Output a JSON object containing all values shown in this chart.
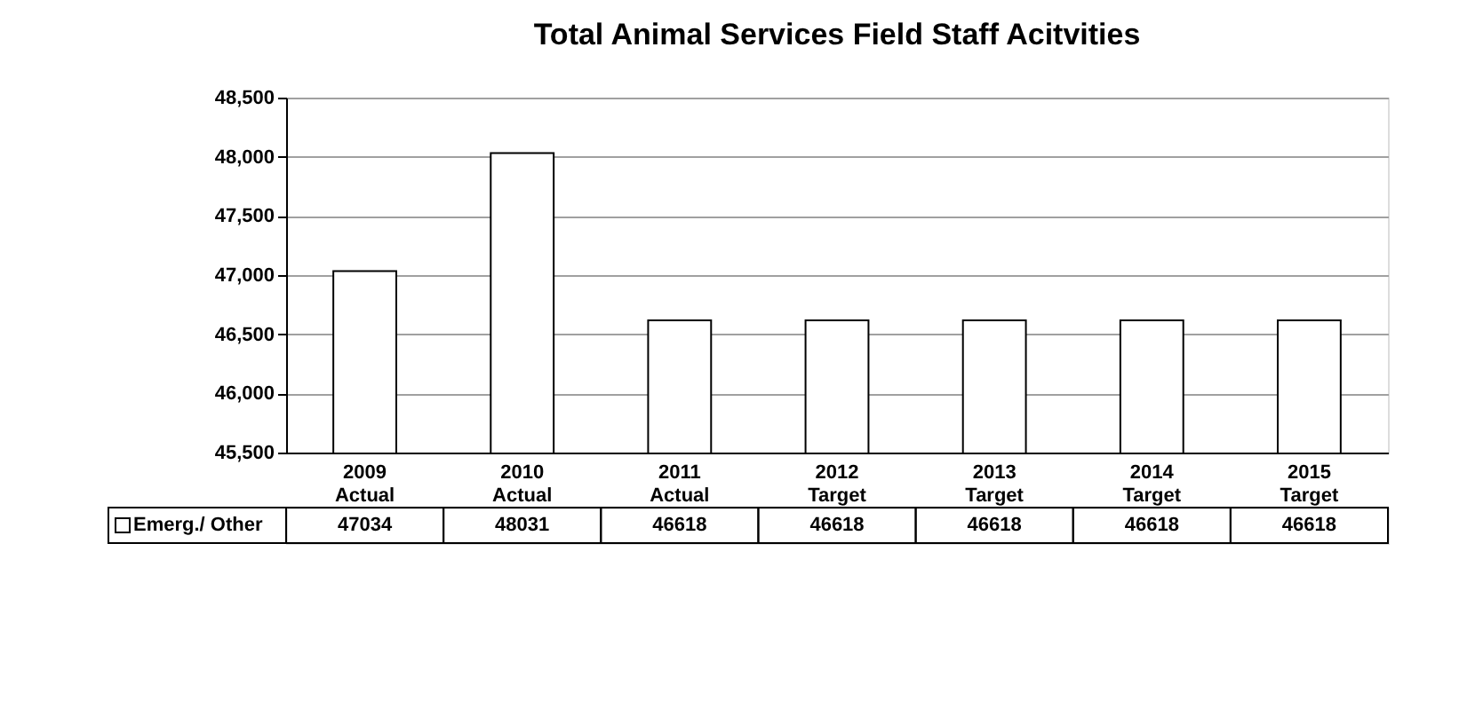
{
  "chart_data": {
    "type": "bar",
    "title": "Total Animal Services Field Staff Acitvities",
    "categories": [
      "2009 Actual",
      "2010 Actual",
      "2011 Actual",
      "2012 Target",
      "2013 Target",
      "2014 Target",
      "2015 Target"
    ],
    "series": [
      {
        "name": "Emerg./ Other",
        "color": "#ffffff",
        "values": [
          47034,
          48031,
          46618,
          46618,
          46618,
          46618,
          46618
        ]
      }
    ],
    "ylim": [
      45500,
      48500
    ],
    "yticks": [
      {
        "value": 45500,
        "label": "45,500"
      },
      {
        "value": 46000,
        "label": "46,000"
      },
      {
        "value": 46500,
        "label": "46,500"
      },
      {
        "value": 47000,
        "label": "47,000"
      },
      {
        "value": 47500,
        "label": "47,500"
      },
      {
        "value": 48000,
        "label": "48,000"
      },
      {
        "value": 48500,
        "label": "48,500"
      }
    ],
    "grid": "y",
    "legend": "bottom",
    "data_labels": true
  }
}
